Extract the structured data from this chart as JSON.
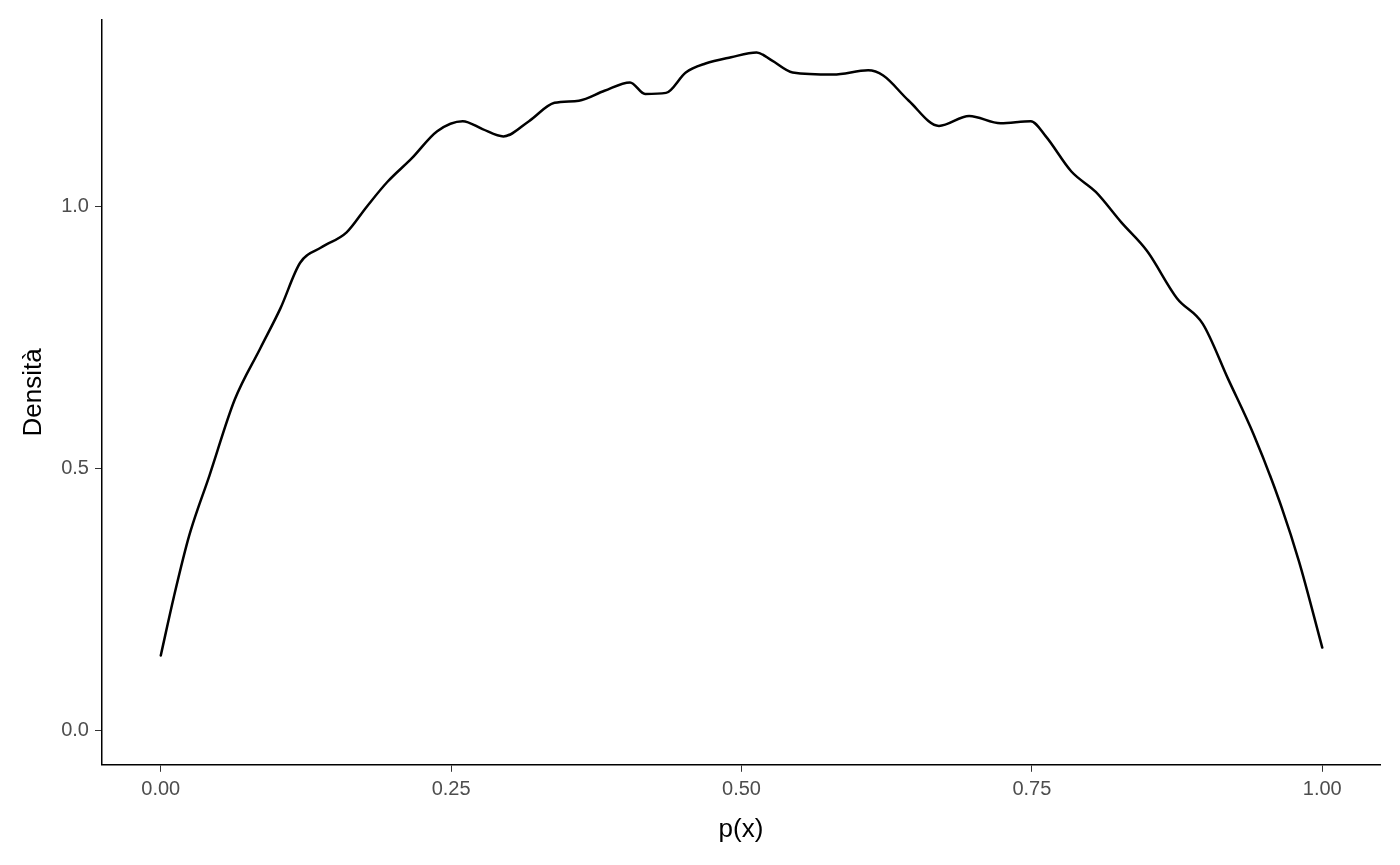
{
  "chart_data": {
    "type": "line",
    "xlabel": "p(x)",
    "ylabel": "Densità",
    "xlim": [
      -0.0506,
      1.0497
    ],
    "ylim": [
      -0.0656,
      1.355
    ],
    "xticks": [
      {
        "value": 0,
        "label": "0.00"
      },
      {
        "value": 0.25,
        "label": "0.25"
      },
      {
        "value": 0.5,
        "label": "0.50"
      },
      {
        "value": 0.75,
        "label": "0.75"
      },
      {
        "value": 1,
        "label": "1.00"
      }
    ],
    "yticks": [
      {
        "value": 0,
        "label": "0.0"
      },
      {
        "value": 0.5,
        "label": "0.5"
      },
      {
        "value": 1,
        "label": "1.0"
      }
    ],
    "grid": false,
    "legend": false,
    "marker": "none",
    "line_style": "solid",
    "series": [
      {
        "color": "#000000",
        "x": [
          0,
          0.0113,
          0.0244,
          0.0419,
          0.0637,
          0.0855,
          0.103,
          0.12,
          0.138,
          0.16,
          0.177,
          0.195,
          0.216,
          0.238,
          0.26,
          0.277,
          0.295,
          0.317,
          0.339,
          0.36,
          0.382,
          0.404,
          0.417,
          0.435,
          0.452,
          0.469,
          0.491,
          0.513,
          0.526,
          0.544,
          0.579,
          0.609,
          0.622,
          0.644,
          0.67,
          0.696,
          0.723,
          0.749,
          0.762,
          0.784,
          0.805,
          0.827,
          0.849,
          0.875,
          0.897,
          0.919,
          0.941,
          0.963,
          0.98,
          1.0
        ],
        "values": [
          0.143,
          0.255,
          0.371,
          0.486,
          0.631,
          0.728,
          0.805,
          0.892,
          0.921,
          0.95,
          0.998,
          1.046,
          1.091,
          1.143,
          1.162,
          1.147,
          1.133,
          1.162,
          1.197,
          1.201,
          1.22,
          1.236,
          1.214,
          1.216,
          1.255,
          1.272,
          1.284,
          1.293,
          1.278,
          1.255,
          1.251,
          1.259,
          1.249,
          1.201,
          1.153,
          1.172,
          1.158,
          1.162,
          1.133,
          1.066,
          1.027,
          0.969,
          0.915,
          0.824,
          0.776,
          0.67,
          0.564,
          0.438,
          0.322,
          0.158
        ]
      }
    ]
  }
}
